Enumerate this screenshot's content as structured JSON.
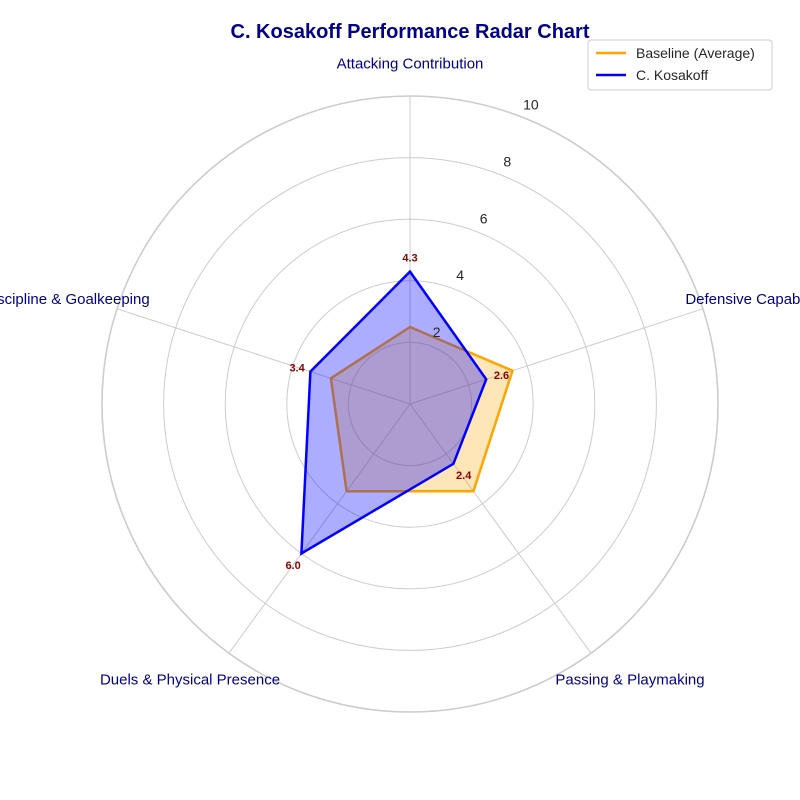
{
  "chart_data": {
    "type": "radar",
    "title": "C. Kosakoff Performance Radar Chart",
    "categories": [
      "Attacking Contribution",
      "Defensive Capability",
      "Passing & Playmaking",
      "Duels & Physical Presence",
      "Discipline & Goalkeeping"
    ],
    "rlim": [
      0,
      10
    ],
    "r_ticks": [
      2,
      4,
      6,
      8,
      10
    ],
    "r_tick_labels": [
      "2",
      "4",
      "6",
      "8",
      "10"
    ],
    "grid": true,
    "legend_position": "top-right",
    "series": [
      {
        "name": "Baseline (Average)",
        "values": [
          2.5,
          3.5,
          3.5,
          3.5,
          2.7
        ],
        "color": "#ffa500",
        "fill_color": "#ffa500"
      },
      {
        "name": "C. Kosakoff",
        "values": [
          4.3,
          2.6,
          2.4,
          6.0,
          3.4
        ],
        "value_labels": [
          "4.3",
          "2.6",
          "2.4",
          "6.0",
          "3.4"
        ],
        "color": "#0000ff",
        "fill_color": "#0000ff"
      }
    ]
  }
}
